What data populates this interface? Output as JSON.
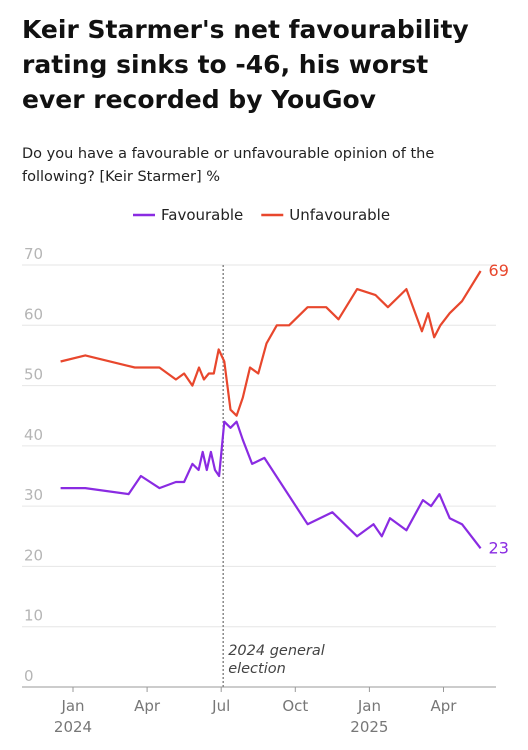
{
  "chart_data": {
    "type": "line",
    "title_lines": [
      "Keir Starmer's net favourability",
      "rating sinks to -46, his worst",
      "ever recorded by YouGov"
    ],
    "subtitle_lines": [
      "Do you have a favourable or unfavourable opinion of the",
      "following? [Keir Starmer] %"
    ],
    "series": [
      {
        "name": "Favourable",
        "color": "#8a2be2",
        "x": [
          "2023-12",
          "2024-01",
          "2024-03",
          "2024-03",
          "2024-04",
          "2024-05",
          "2024-05",
          "2024-05",
          "2024-06",
          "2024-06",
          "2024-06",
          "2024-06",
          "2024-06",
          "2024-06",
          "2024-07",
          "2024-07",
          "2024-07",
          "2024-07",
          "2024-08",
          "2024-08",
          "2024-10",
          "2024-11",
          "2024-12",
          "2025-01",
          "2025-01",
          "2025-01",
          "2025-02",
          "2025-03",
          "2025-03",
          "2025-03",
          "2025-04",
          "2025-04",
          "2025-05"
        ],
        "values": [
          33,
          33,
          32,
          35,
          33,
          34,
          34,
          37,
          36,
          39,
          36,
          39,
          36,
          35,
          44,
          43,
          44,
          41,
          37,
          38,
          27,
          29,
          25,
          27,
          25,
          28,
          26,
          31,
          30,
          32,
          28,
          27,
          23
        ]
      },
      {
        "name": "Unfavourable",
        "color": "#e8472d",
        "x": [
          "2023-12",
          "2024-01",
          "2024-03",
          "2024-04",
          "2024-05",
          "2024-05",
          "2024-05",
          "2024-06",
          "2024-06",
          "2024-06",
          "2024-06",
          "2024-06",
          "2024-07",
          "2024-07",
          "2024-07",
          "2024-07",
          "2024-08",
          "2024-08",
          "2024-08",
          "2024-09",
          "2024-09",
          "2024-10",
          "2024-11",
          "2024-11",
          "2024-12",
          "2025-01",
          "2025-01",
          "2025-02",
          "2025-03",
          "2025-03",
          "2025-03",
          "2025-03",
          "2025-04",
          "2025-04",
          "2025-05"
        ],
        "values": [
          54,
          55,
          53,
          53,
          51,
          52,
          50,
          53,
          51,
          52,
          52,
          56,
          54,
          46,
          45,
          48,
          53,
          52,
          57,
          60,
          60,
          63,
          63,
          61,
          66,
          65,
          63,
          66,
          59,
          62,
          58,
          60,
          62,
          64,
          69
        ]
      }
    ],
    "xticks": [
      {
        "value": "2024-01",
        "label": "Jan"
      },
      {
        "value": "2024-04",
        "label": "Apr"
      },
      {
        "value": "2024-07",
        "label": "Jul"
      },
      {
        "value": "2024-10",
        "label": "Oct"
      },
      {
        "value": "2025-01",
        "label": "Jan"
      },
      {
        "value": "2025-04",
        "label": "Apr"
      }
    ],
    "x_year_labels": [
      {
        "value": "2024-01",
        "label": "2024"
      },
      {
        "value": "2025-01",
        "label": "2025"
      }
    ],
    "ylim": [
      0,
      70
    ],
    "yticks": [
      0,
      10,
      20,
      30,
      40,
      50,
      60,
      70
    ],
    "grid": true,
    "annotation": {
      "x": "2024-07",
      "lines": [
        "2024 general",
        "election"
      ]
    },
    "legend": "top"
  }
}
